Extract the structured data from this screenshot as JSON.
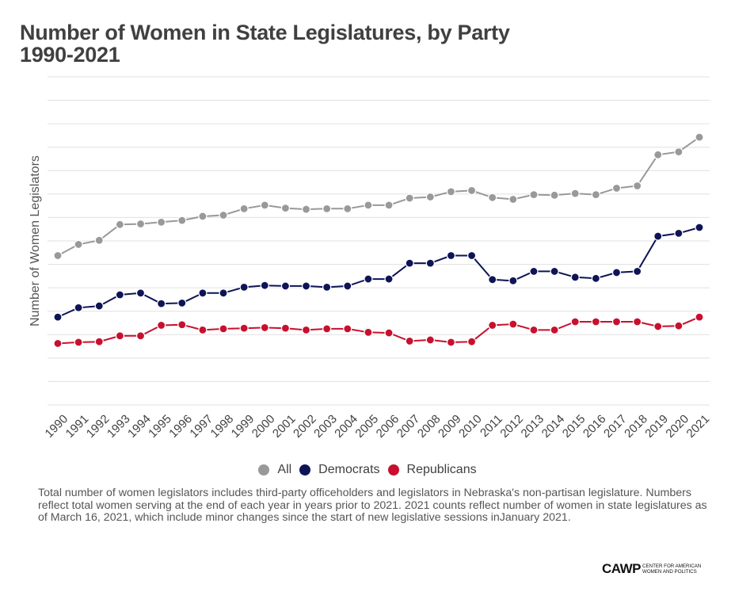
{
  "title": {
    "line1": "Number of Women in State Legislatures, by Party",
    "line2": "1990-2021"
  },
  "legend": [
    {
      "label": "All",
      "color": "#999999"
    },
    {
      "label": "Democrats",
      "color": "#0e1456"
    },
    {
      "label": "Republicans",
      "color": "#c8102e"
    }
  ],
  "footnote": "Total number of women legislators includes third-party officeholders and legislators in Nebraska's non-partisan legislature. Numbers reflect total women serving at the end of each year in years prior to 2021. 2021 counts reflect number of women in state legislatures as of March 16, 2021, which include minor changes since the start of new legislative sessions inJanuary 2021.",
  "logo": {
    "main": "CAWP",
    "sub_line1": "CENTER FOR AMERICAN",
    "sub_line2": "WOMEN AND POLITICS"
  },
  "chart_data": {
    "type": "line",
    "title": "Number of Women in State Legislatures, by Party 1990-2021",
    "xlabel": "",
    "ylabel": "Number of Women Legislators",
    "ylim": [
      0,
      2800
    ],
    "y_grid_step": 200,
    "y_tick_labels_shown": false,
    "grid": true,
    "legend_position": "bottom",
    "x": [
      "1990",
      "1991",
      "1992",
      "1993",
      "1994",
      "1995",
      "1996",
      "1997",
      "1998",
      "1999",
      "2000",
      "2001",
      "2002",
      "2003",
      "2004",
      "2005",
      "2006",
      "2007",
      "2008",
      "2009",
      "2010",
      "2011",
      "2012",
      "2013",
      "2014",
      "2015",
      "2016",
      "2017",
      "2018",
      "2019",
      "2020",
      "2021"
    ],
    "series": [
      {
        "name": "All",
        "color": "#999999",
        "values": [
          1275,
          1370,
          1405,
          1540,
          1545,
          1560,
          1575,
          1610,
          1620,
          1675,
          1705,
          1680,
          1670,
          1675,
          1675,
          1705,
          1705,
          1765,
          1775,
          1820,
          1830,
          1770,
          1755,
          1795,
          1790,
          1805,
          1795,
          1850,
          1870,
          2135,
          2160,
          2285
        ]
      },
      {
        "name": "Democrats",
        "color": "#0e1456",
        "values": [
          750,
          830,
          845,
          940,
          955,
          865,
          870,
          955,
          955,
          1005,
          1020,
          1015,
          1015,
          1005,
          1015,
          1075,
          1075,
          1210,
          1210,
          1275,
          1275,
          1070,
          1060,
          1140,
          1140,
          1090,
          1080,
          1130,
          1140,
          1440,
          1465,
          1515
        ]
      },
      {
        "name": "Republicans",
        "color": "#c8102e",
        "values": [
          525,
          535,
          540,
          590,
          590,
          680,
          685,
          640,
          650,
          655,
          660,
          655,
          640,
          650,
          650,
          620,
          615,
          545,
          555,
          535,
          540,
          680,
          690,
          640,
          640,
          710,
          710,
          710,
          710,
          670,
          675,
          750
        ]
      }
    ]
  }
}
